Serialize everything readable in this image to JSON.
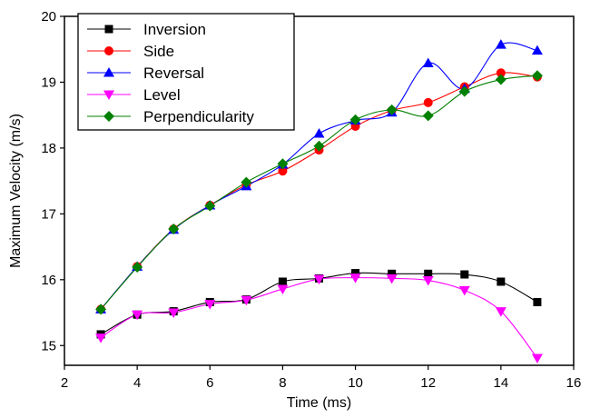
{
  "chart_data": {
    "type": "line",
    "title": "",
    "xlabel": "Time (ms)",
    "ylabel": "Maximum Velocity (m/s)",
    "xlim": [
      2,
      16
    ],
    "ylim": [
      14.7,
      20
    ],
    "xticks": [
      2,
      4,
      6,
      8,
      10,
      12,
      14,
      16
    ],
    "yticks": [
      15,
      16,
      17,
      18,
      19,
      20
    ],
    "grid": false,
    "legend_position": "top-left",
    "x": [
      3,
      4,
      5,
      6,
      7,
      8,
      9,
      10,
      11,
      12,
      13,
      14,
      15
    ],
    "series": [
      {
        "name": "Inversion",
        "marker": "square",
        "color": "#000000",
        "values": [
          15.17,
          15.47,
          15.52,
          15.66,
          15.7,
          15.97,
          16.02,
          16.1,
          16.09,
          16.09,
          16.08,
          15.97,
          15.66
        ]
      },
      {
        "name": "Side",
        "marker": "circle",
        "color": "#ff0000",
        "values": [
          15.55,
          16.2,
          16.77,
          17.13,
          17.44,
          17.65,
          17.97,
          18.33,
          18.57,
          18.69,
          18.93,
          19.14,
          19.08
        ]
      },
      {
        "name": "Reversal",
        "marker": "triangle-up",
        "color": "#0000ff",
        "values": [
          15.55,
          16.2,
          16.76,
          17.13,
          17.42,
          17.75,
          18.22,
          18.42,
          18.54,
          19.29,
          18.9,
          19.57,
          19.48
        ]
      },
      {
        "name": "Level",
        "marker": "triangle-down",
        "color": "#ff00ff",
        "values": [
          15.12,
          15.47,
          15.5,
          15.63,
          15.69,
          15.86,
          16.01,
          16.03,
          16.02,
          15.99,
          15.84,
          15.52,
          14.81
        ]
      },
      {
        "name": "Perpendicularity",
        "marker": "diamond",
        "color": "#008000",
        "values": [
          15.55,
          16.19,
          16.77,
          17.12,
          17.48,
          17.76,
          18.03,
          18.43,
          18.58,
          18.49,
          18.86,
          19.04,
          19.1
        ]
      }
    ]
  }
}
